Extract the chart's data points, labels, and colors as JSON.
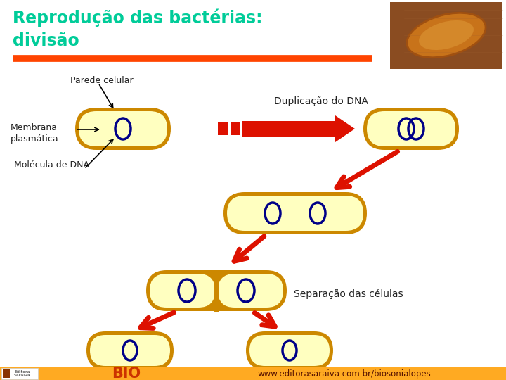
{
  "title_line1": "Reprodução das bactérias:",
  "title_line2": "divisão",
  "title_color": "#00cc99",
  "bg_color": "#ffffff",
  "separator_color": "#ff4400",
  "label_parede": "Parede celular",
  "label_membrana": "Membrana\nplasmática",
  "label_molecula": "Molécula de DNA",
  "label_duplicacao": "Duplicação do DNA",
  "label_separacao": "Separação das células",
  "label_bio": "BIO",
  "label_website": "www.editorasaraiva.com.br/biosonialopes",
  "cell_fill": "#ffffc0",
  "cell_outer": "#cc8800",
  "cell_inner": "#cc8800",
  "dna_color": "#000088",
  "arrow_color": "#dd1100",
  "footer_bg_left": "#ffaa00",
  "footer_bg_right": "#ff6600",
  "footer_text_color": "#8B1A00",
  "bio_color": "#cc3300"
}
